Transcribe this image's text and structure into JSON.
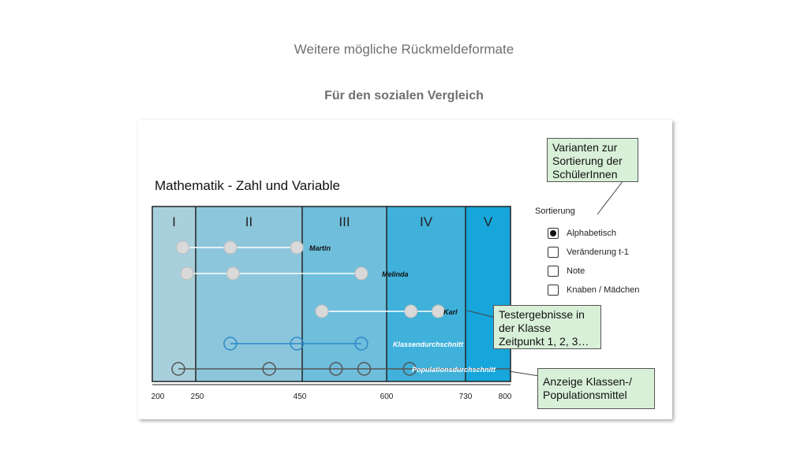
{
  "slide": {
    "title": "Weitere mögliche Rückmeldeformate",
    "subtitle": "Für den sozialen Vergleich"
  },
  "chart_data": {
    "type": "scatter",
    "title": "Mathematik - Zahl und Variable",
    "x_ticks": [
      200,
      250,
      450,
      600,
      730,
      800
    ],
    "xlim": [
      200,
      800
    ],
    "levels": [
      {
        "label": "I",
        "from": 200,
        "to": 250,
        "color": "#a8d0dc"
      },
      {
        "label": "II",
        "from": 250,
        "to": 450,
        "color": "#8cc6dc"
      },
      {
        "label": "III",
        "from": 450,
        "to": 600,
        "color": "#6ebedc"
      },
      {
        "label": "IV",
        "from": 600,
        "to": 730,
        "color": "#3fb1da"
      },
      {
        "label": "V",
        "from": 730,
        "to": 800,
        "color": "#16a6dc"
      }
    ],
    "series": [
      {
        "name": "Martin",
        "values": [
          235,
          315,
          440
        ],
        "color": "#ffffff",
        "fill": "#d9d9d9",
        "label_color": "#111111"
      },
      {
        "name": "Melinda",
        "values": [
          240,
          320,
          555
        ],
        "color": "#ffffff",
        "fill": "#d9d9d9",
        "label_color": "#111111"
      },
      {
        "name": "Karl",
        "values": [
          485,
          640,
          685
        ],
        "color": "#ffffff",
        "fill": "#d9d9d9",
        "label_color": "#111111"
      },
      {
        "name": "Klassendurchschnitt",
        "values": [
          315,
          440,
          555
        ],
        "color": "#2f89c7",
        "fill": "none",
        "label_color": "#ffffff"
      },
      {
        "name": "Populationsdurchschnitt",
        "values": [
          230,
          388,
          510,
          560,
          638
        ],
        "color": "#555555",
        "fill": "none",
        "label_color": "#ffffff"
      }
    ]
  },
  "sort_panel": {
    "title": "Sortierung",
    "options": [
      {
        "label": "Alphabetisch",
        "checked": true
      },
      {
        "label": "Veränderung t-1",
        "checked": false
      },
      {
        "label": "Note",
        "checked": false
      },
      {
        "label": "Knaben / Mädchen",
        "checked": false
      }
    ]
  },
  "callouts": {
    "sorting": [
      "Varianten zur",
      "Sortierung der",
      "SchülerInnen"
    ],
    "results": [
      "Testergebnisse in",
      "der Klasse",
      "Zeitpunkt 1, 2, 3…"
    ],
    "means": [
      "Anzeige Klassen-/",
      "Populationsmittel"
    ]
  }
}
